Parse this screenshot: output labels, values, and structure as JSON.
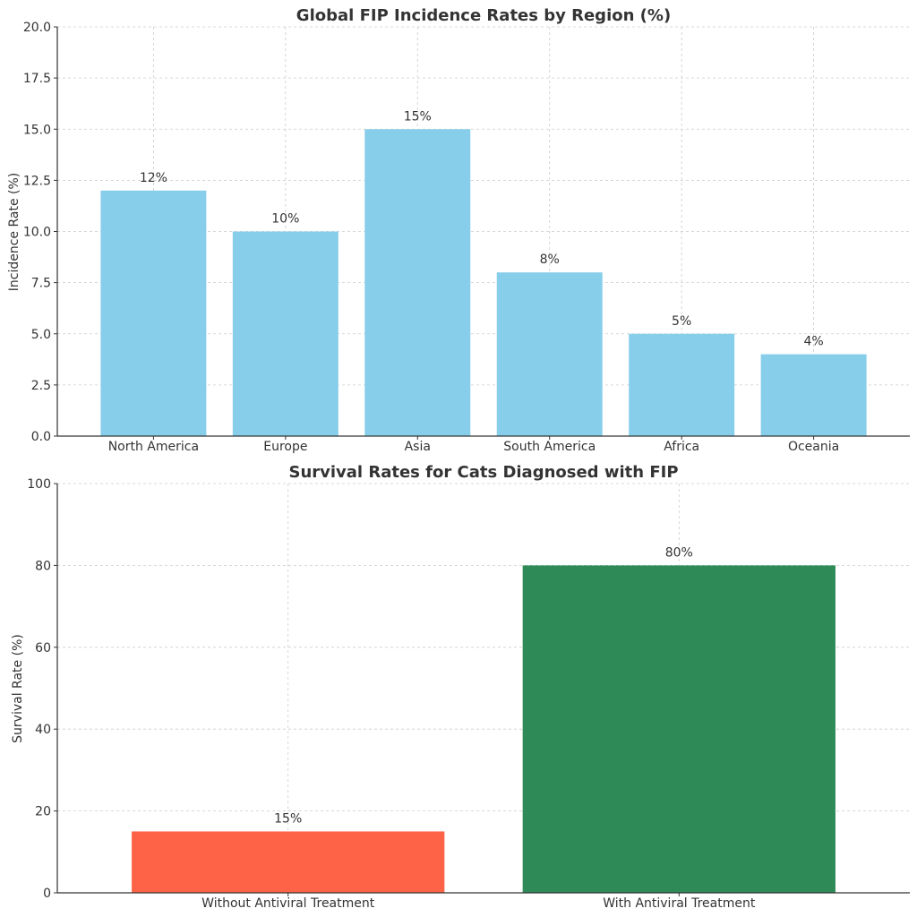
{
  "chart_data": [
    {
      "type": "bar",
      "title": "Global FIP Incidence Rates by Region (%)",
      "xlabel": "",
      "ylabel": "Incidence Rate (%)",
      "categories": [
        "North America",
        "Europe",
        "Asia",
        "South America",
        "Africa",
        "Oceania"
      ],
      "values": [
        12,
        10,
        15,
        8,
        5,
        4
      ],
      "data_labels": [
        "12%",
        "10%",
        "15%",
        "8%",
        "5%",
        "4%"
      ],
      "colors": [
        "#87CEEB",
        "#87CEEB",
        "#87CEEB",
        "#87CEEB",
        "#87CEEB",
        "#87CEEB"
      ],
      "ylim": [
        0,
        20
      ],
      "yticks": [
        0,
        2.5,
        5,
        7.5,
        10,
        12.5,
        15,
        17.5,
        20
      ],
      "ytick_labels": [
        "0.0",
        "2.5",
        "5.0",
        "7.5",
        "10.0",
        "12.5",
        "15.0",
        "17.5",
        "20.0"
      ],
      "grid": true
    },
    {
      "type": "bar",
      "title": "Survival Rates for Cats Diagnosed with FIP",
      "xlabel": "",
      "ylabel": "Survival Rate (%)",
      "categories": [
        "Without Antiviral Treatment",
        "With Antiviral Treatment"
      ],
      "values": [
        15,
        80
      ],
      "data_labels": [
        "15%",
        "80%"
      ],
      "colors": [
        "#FF6347",
        "#2E8B57"
      ],
      "ylim": [
        0,
        100
      ],
      "yticks": [
        0,
        20,
        40,
        60,
        80,
        100
      ],
      "ytick_labels": [
        "0",
        "20",
        "40",
        "60",
        "80",
        "100"
      ],
      "grid": true
    }
  ]
}
